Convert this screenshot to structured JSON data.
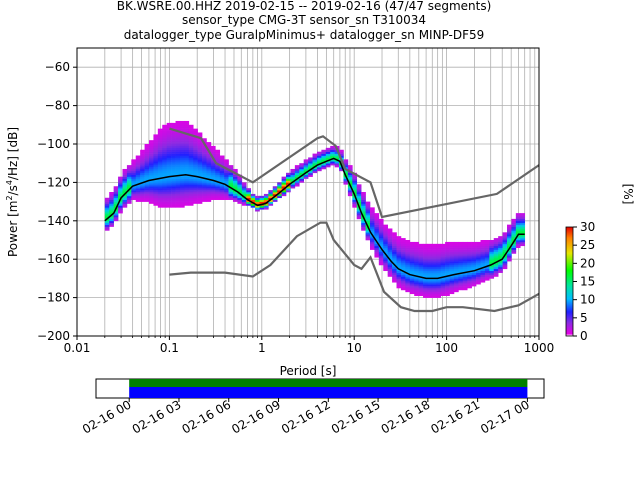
{
  "title_lines": [
    "BK.WSRE.00.HHZ   2019-02-15 -- 2019-02-16  (47/47 segments)",
    "sensor_type CMG-3T sensor_sn T310034",
    "datalogger_type GuralpMinimus+ datalogger_sn MINP-DF59"
  ],
  "chart_data": [
    {
      "type": "heatmap",
      "xlabel": "Period [s]",
      "ylabel": "Power [m²/s⁴/Hz] [dB]",
      "ylabel_parts": {
        "pre": "Power [m",
        "sup1": "2",
        "mid": "/s",
        "sup2": "4",
        "post": "/Hz] [dB]"
      },
      "x_scale": "log",
      "xlim": [
        0.01,
        1000
      ],
      "ylim": [
        -200,
        -50
      ],
      "x_ticks": [
        0.01,
        0.1,
        1,
        10,
        100,
        1000
      ],
      "x_tick_labels": [
        "0.01",
        "0.1",
        "1",
        "10",
        "100",
        "1000"
      ],
      "y_ticks": [
        -200,
        -180,
        -160,
        -140,
        -120,
        -100,
        -80,
        -60
      ],
      "y_tick_labels": [
        "−200",
        "−180",
        "−160",
        "−140",
        "−120",
        "−100",
        "−80",
        "−60"
      ],
      "grid": true,
      "noise_models": {
        "new_high_noise_model": [
          [
            0.1,
            -92
          ],
          [
            0.22,
            -97
          ],
          [
            0.32,
            -110
          ],
          [
            0.8,
            -120
          ],
          [
            4,
            -97
          ],
          [
            4.6,
            -96
          ],
          [
            6.3,
            -101
          ],
          [
            8,
            -113
          ],
          [
            15,
            -120
          ],
          [
            20,
            -138
          ],
          [
            350,
            -126
          ],
          [
            1000,
            -111
          ]
        ],
        "new_low_noise_model": [
          [
            0.1,
            -168
          ],
          [
            0.17,
            -167
          ],
          [
            0.4,
            -167
          ],
          [
            0.8,
            -169
          ],
          [
            1.24,
            -163
          ],
          [
            2.4,
            -148
          ],
          [
            4.3,
            -141
          ],
          [
            5,
            -141
          ],
          [
            6,
            -150
          ],
          [
            10,
            -163
          ],
          [
            12,
            -165
          ],
          [
            15,
            -159
          ],
          [
            21,
            -177
          ],
          [
            32,
            -185
          ],
          [
            45,
            -187
          ],
          [
            70,
            -187
          ],
          [
            100,
            -185
          ],
          [
            150,
            -185
          ],
          [
            330,
            -187
          ],
          [
            600,
            -184
          ],
          [
            1000,
            -178
          ]
        ]
      },
      "median_curve": [
        [
          0.02,
          -140
        ],
        [
          0.025,
          -136
        ],
        [
          0.03,
          -128
        ],
        [
          0.04,
          -122
        ],
        [
          0.06,
          -119
        ],
        [
          0.1,
          -117
        ],
        [
          0.15,
          -116
        ],
        [
          0.2,
          -117
        ],
        [
          0.3,
          -119
        ],
        [
          0.4,
          -121
        ],
        [
          0.55,
          -125
        ],
        [
          0.7,
          -129
        ],
        [
          0.9,
          -132
        ],
        [
          1.1,
          -131
        ],
        [
          1.5,
          -126
        ],
        [
          2,
          -121
        ],
        [
          3,
          -115
        ],
        [
          4,
          -111
        ],
        [
          5,
          -109
        ],
        [
          6,
          -107.5
        ],
        [
          7,
          -109
        ],
        [
          8,
          -116
        ],
        [
          10,
          -126
        ],
        [
          12,
          -136
        ],
        [
          15,
          -146
        ],
        [
          20,
          -155
        ],
        [
          25,
          -161
        ],
        [
          30,
          -165
        ],
        [
          40,
          -168
        ],
        [
          60,
          -170
        ],
        [
          80,
          -170
        ],
        [
          120,
          -168
        ],
        [
          200,
          -166
        ],
        [
          300,
          -163
        ],
        [
          400,
          -160
        ],
        [
          500,
          -153
        ],
        [
          600,
          -147
        ],
        [
          700,
          -147
        ]
      ],
      "spread_curve": [
        [
          0.02,
          5
        ],
        [
          0.04,
          6
        ],
        [
          0.06,
          9
        ],
        [
          0.08,
          12
        ],
        [
          0.1,
          13
        ],
        [
          0.15,
          13
        ],
        [
          0.2,
          11
        ],
        [
          0.3,
          8
        ],
        [
          0.5,
          5
        ],
        [
          0.8,
          2
        ],
        [
          1.2,
          2
        ],
        [
          2,
          3
        ],
        [
          4,
          3
        ],
        [
          7,
          3
        ],
        [
          10,
          5
        ],
        [
          20,
          7
        ],
        [
          40,
          8
        ],
        [
          100,
          8
        ],
        [
          300,
          6
        ],
        [
          700,
          5
        ]
      ],
      "colorbar": {
        "label": "[%]",
        "ticks": [
          0,
          5,
          10,
          15,
          20,
          25,
          30
        ],
        "range": [
          0,
          30
        ],
        "colormap": "pqlx"
      }
    },
    {
      "type": "timeline",
      "x_tick_labels": [
        "02-16 00",
        "02-16 03",
        "02-16 06",
        "02-16 09",
        "02-16 12",
        "02-16 15",
        "02-16 18",
        "02-16 21",
        "02-17 00"
      ],
      "range": [
        "2019-02-15 22:00",
        "2019-02-17 01:00"
      ],
      "coverage": [
        [
          "2019-02-16 00:00",
          "2019-02-17 00:00"
        ]
      ],
      "colors": {
        "data": "#0000ff",
        "gaps_top": "#008000"
      }
    }
  ]
}
